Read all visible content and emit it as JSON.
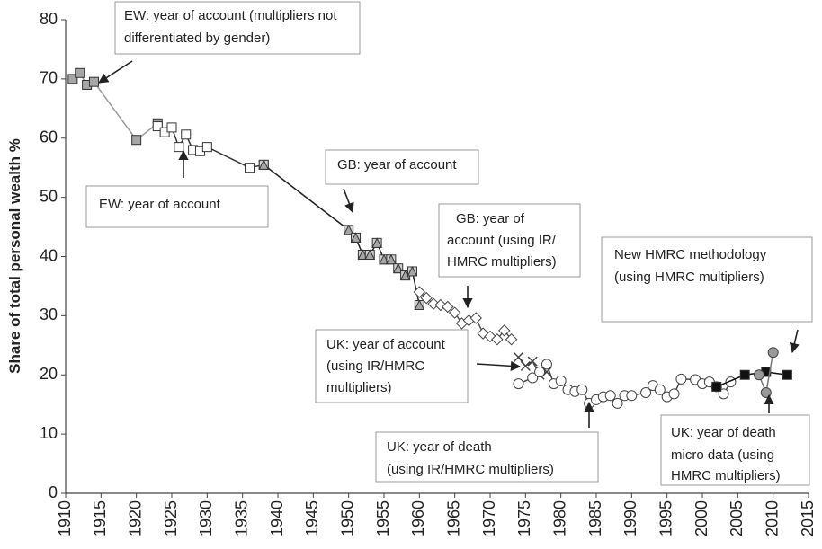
{
  "chart_data": {
    "type": "line",
    "y_label": "Share of total personal wealth %",
    "xlim": [
      1910,
      2015
    ],
    "xticks": [
      1910,
      1915,
      1920,
      1925,
      1930,
      1935,
      1940,
      1945,
      1950,
      1955,
      1960,
      1965,
      1970,
      1975,
      1980,
      1985,
      1990,
      1995,
      2000,
      2005,
      2010,
      2015
    ],
    "ylim": [
      0,
      80
    ],
    "yticks": [
      0,
      10,
      20,
      30,
      40,
      50,
      60,
      70,
      80
    ],
    "series": [
      {
        "x": [
          1911,
          1912,
          1913,
          1914,
          1920,
          1923
        ],
        "values": [
          70,
          71,
          69,
          69.5,
          59.7,
          62.5
        ],
        "color": "#999999",
        "marker": "square",
        "marker_fill": "#a6a6a6"
      },
      {
        "x": [
          1923,
          1924,
          1925,
          1926,
          1927,
          1928,
          1929,
          1930,
          1936,
          1938
        ],
        "values": [
          62,
          61,
          61.8,
          58.5,
          60.6,
          58,
          57.8,
          58.5,
          55,
          55.5
        ],
        "color": "#333333",
        "marker": "square",
        "marker_fill": "#ffffff"
      },
      {
        "x": [
          1938,
          1950,
          1951,
          1952,
          1953,
          1954,
          1955,
          1956,
          1957,
          1958,
          1959,
          1960
        ],
        "values": [
          55.5,
          44.5,
          43.2,
          40.3,
          40.3,
          42.3,
          39.5,
          39.5,
          38,
          36.8,
          37.5,
          31.8
        ],
        "color": "#222222",
        "marker": "tri-square",
        "marker_fill": "#a6a6a6"
      },
      {
        "x": [
          1960,
          1961,
          1962,
          1963,
          1964,
          1965,
          1966,
          1967,
          1968,
          1969,
          1970,
          1971,
          1972,
          1973
        ],
        "values": [
          34,
          33,
          32,
          31.8,
          31.5,
          30.5,
          28.7,
          29.2,
          29.6,
          27,
          26.5,
          26,
          27.5,
          26
        ],
        "color": "#555555",
        "marker": "diamond",
        "marker_fill": "#ffffff"
      },
      {
        "x": [
          1974,
          1975,
          1976,
          1977,
          1978
        ],
        "values": [
          23,
          21.5,
          22.3,
          20,
          20.5
        ],
        "color": "#444444",
        "marker": "cross",
        "marker_fill": "#444444"
      },
      {
        "x": [
          1974,
          1976,
          1977,
          1978,
          1979,
          1980,
          1981,
          1982,
          1983,
          1984,
          1985,
          1986,
          1987,
          1988,
          1989,
          1990,
          1992,
          1993,
          1994,
          1995,
          1996,
          1997,
          1999,
          2000,
          2001,
          2002,
          2003,
          2004
        ],
        "values": [
          18.5,
          19.5,
          20.5,
          21.8,
          18.5,
          19,
          17.5,
          17.2,
          17.5,
          15.2,
          15.8,
          16.3,
          16.5,
          15.2,
          16.5,
          16.5,
          17,
          18.2,
          17.5,
          16.3,
          16.8,
          19.3,
          19.2,
          18.5,
          18.8,
          18,
          16.8,
          18.8
        ],
        "color": "#444444",
        "marker": "circle",
        "marker_fill": "#ffffff"
      },
      {
        "x": [
          2002,
          2006,
          2009,
          2012
        ],
        "values": [
          18,
          20,
          20.5,
          20
        ],
        "color": "#111111",
        "marker": "square",
        "marker_fill": "#111111"
      },
      {
        "x": [
          2008,
          2009,
          2010
        ],
        "values": [
          20,
          17,
          23.8
        ],
        "color": "#777777",
        "marker": "circle",
        "marker_fill": "#999999"
      }
    ],
    "annotations": [
      {
        "lines": [
          "EW: year of account (multipliers not",
          "differentiated by gender)"
        ]
      },
      {
        "lines": [
          "EW: year of account"
        ]
      },
      {
        "lines": [
          "GB: year of account"
        ]
      },
      {
        "lines": [
          "GB: year of",
          "account (using IR/",
          "HMRC multipliers)"
        ]
      },
      {
        "lines": [
          "UK: year of account",
          "(using IR/HMRC",
          "multipliers)"
        ]
      },
      {
        "lines": [
          "UK: year of death",
          "(using IR/HMRC multipliers)"
        ]
      },
      {
        "lines": [
          "New HMRC methodology",
          "(using HMRC multipliers)"
        ]
      },
      {
        "lines": [
          "UK: year of death",
          "micro data  (using",
          "HMRC multipliers)"
        ]
      }
    ]
  }
}
